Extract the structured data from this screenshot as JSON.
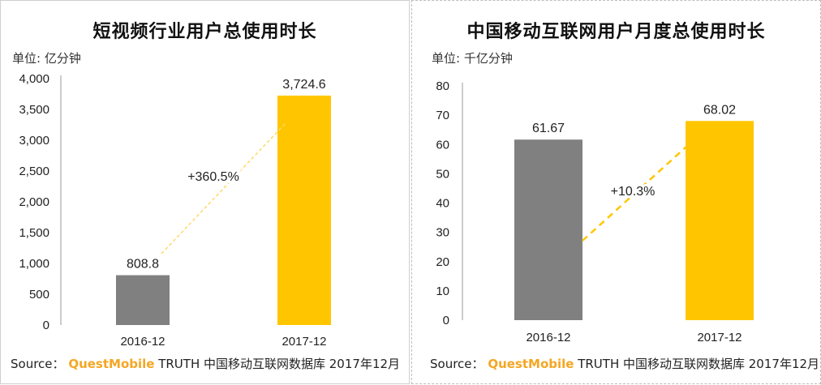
{
  "chart_data": [
    {
      "type": "bar",
      "title": "短视频行业用户总使用时长",
      "unit_label": "单位: 亿分钟",
      "categories": [
        "2016-12",
        "2017-12"
      ],
      "values": [
        808.8,
        3724.6
      ],
      "value_labels": [
        "808.8",
        "3,724.6"
      ],
      "bar_colors": [
        "#808080",
        "#ffc600"
      ],
      "ylim": [
        0,
        4000
      ],
      "yticks": [
        0,
        500,
        1000,
        1500,
        2000,
        2500,
        3000,
        3500,
        4000
      ],
      "ytick_labels": [
        "0",
        "500",
        "1,000",
        "1,500",
        "2,000",
        "2,500",
        "3,000",
        "3,500",
        "4,000"
      ],
      "growth_label": "+360.5%",
      "grid": false
    },
    {
      "type": "bar",
      "title": "中国移动互联网用户月度总使用时长",
      "unit_label": "单位: 千亿分钟",
      "categories": [
        "2016-12",
        "2017-12"
      ],
      "values": [
        61.67,
        68.02
      ],
      "value_labels": [
        "61.67",
        "68.02"
      ],
      "bar_colors": [
        "#808080",
        "#ffc600"
      ],
      "ylim": [
        0,
        80
      ],
      "yticks": [
        0,
        10,
        20,
        30,
        40,
        50,
        60,
        70,
        80
      ],
      "ytick_labels": [
        "0",
        "10",
        "20",
        "30",
        "40",
        "50",
        "60",
        "70",
        "80"
      ],
      "growth_label": "+10.3%",
      "grid": false
    }
  ],
  "source": {
    "prefix": "Source：",
    "brand": "QuestMobile",
    "rest": " TRUTH 中国移动互联网数据库 2017年12月"
  },
  "colors": {
    "accent": "#ffc600",
    "gray_bar": "#808080",
    "brand": "#f5a623"
  }
}
